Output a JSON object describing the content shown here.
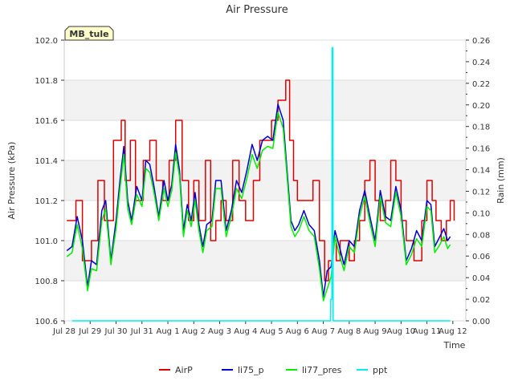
{
  "chart_data": {
    "type": "line",
    "title": "Air Pressure",
    "xlabel": "Time",
    "ylabel_left": "Air Pressure (kPa)",
    "ylabel_right": "Rain (mm)",
    "badge": "MB_tule",
    "ylim_left": [
      100.6,
      102.0
    ],
    "ylim_right": [
      0.0,
      0.26
    ],
    "xlim": [
      0,
      15.5
    ],
    "yticks_left": [
      "100.6",
      "100.8",
      "101.0",
      "101.2",
      "101.4",
      "101.6",
      "101.8",
      "102.0"
    ],
    "yticks_right": [
      "0.00",
      "0.02",
      "0.04",
      "0.06",
      "0.08",
      "0.10",
      "0.12",
      "0.14",
      "0.16",
      "0.18",
      "0.20",
      "0.22",
      "0.24",
      "0.26"
    ],
    "xticks": [
      "Jul 28",
      "Jul 29",
      "Jul 30",
      "Jul 31",
      "Aug 1",
      "Aug 2",
      "Aug 3",
      "Aug 4",
      "Aug 5",
      "Aug 6",
      "Aug 7",
      "Aug 8",
      "Aug 9",
      "Aug 10",
      "Aug 11",
      "Aug 12"
    ],
    "series": [
      {
        "name": "AirP",
        "color": "#dd0000",
        "axis": "left",
        "step": true,
        "x": [
          0.1,
          0.45,
          0.7,
          1.05,
          1.3,
          1.55,
          1.9,
          2.2,
          2.35,
          2.55,
          2.75,
          3.05,
          3.3,
          3.55,
          3.8,
          4.05,
          4.3,
          4.55,
          4.8,
          5.0,
          5.2,
          5.45,
          5.65,
          5.85,
          6.05,
          6.25,
          6.5,
          6.75,
          7.0,
          7.3,
          7.55,
          7.75,
          8.0,
          8.25,
          8.55,
          8.7,
          8.85,
          9.0,
          9.15,
          9.35,
          9.6,
          9.85,
          10.05,
          10.2,
          10.35,
          10.5,
          10.65,
          10.8,
          11.0,
          11.2,
          11.4,
          11.6,
          11.8,
          12.0,
          12.2,
          12.4,
          12.6,
          12.8,
          13.0,
          13.2,
          13.5,
          13.8,
          14.0,
          14.2,
          14.35,
          14.55,
          14.75,
          14.9,
          15.05
        ],
        "values": [
          101.1,
          101.2,
          100.9,
          101.0,
          101.3,
          101.1,
          101.5,
          101.6,
          101.3,
          101.5,
          101.2,
          101.4,
          101.5,
          101.3,
          101.2,
          101.4,
          101.6,
          101.3,
          101.1,
          101.3,
          101.1,
          101.4,
          101.0,
          101.1,
          101.2,
          101.1,
          101.4,
          101.2,
          101.1,
          101.3,
          101.5,
          101.5,
          101.6,
          101.7,
          101.8,
          101.5,
          101.3,
          101.2,
          101.2,
          101.2,
          101.3,
          101.0,
          100.8,
          100.9,
          101.0,
          100.9,
          101.0,
          101.0,
          100.9,
          101.0,
          101.1,
          101.3,
          101.4,
          101.2,
          101.1,
          101.2,
          101.4,
          101.3,
          101.1,
          101.0,
          100.9,
          101.1,
          101.3,
          101.2,
          101.1,
          101.0,
          101.1,
          101.2,
          101.1
        ]
      },
      {
        "name": "li75_p",
        "color": "#0000cc",
        "axis": "left",
        "step": false,
        "x": [
          0.1,
          0.3,
          0.5,
          0.7,
          0.9,
          1.05,
          1.25,
          1.45,
          1.6,
          1.8,
          2.0,
          2.15,
          2.3,
          2.45,
          2.6,
          2.8,
          3.0,
          3.15,
          3.3,
          3.45,
          3.65,
          3.85,
          4.0,
          4.15,
          4.3,
          4.45,
          4.6,
          4.75,
          4.9,
          5.05,
          5.2,
          5.35,
          5.5,
          5.7,
          5.85,
          6.05,
          6.25,
          6.45,
          6.65,
          6.85,
          7.05,
          7.25,
          7.45,
          7.65,
          7.85,
          8.05,
          8.25,
          8.45,
          8.6,
          8.75,
          8.9,
          9.05,
          9.25,
          9.45,
          9.65,
          9.85,
          10.0,
          10.15,
          10.3,
          10.45,
          10.6,
          10.8,
          11.0,
          11.2,
          11.4,
          11.6,
          11.8,
          12.0,
          12.2,
          12.4,
          12.6,
          12.8,
          13.0,
          13.2,
          13.4,
          13.6,
          13.8,
          14.0,
          14.15,
          14.3,
          14.5,
          14.65,
          14.8,
          14.9
        ],
        "values": [
          100.95,
          100.97,
          101.12,
          101.0,
          100.77,
          100.9,
          100.88,
          101.15,
          101.2,
          100.9,
          101.1,
          101.3,
          101.47,
          101.2,
          101.1,
          101.27,
          101.2,
          101.4,
          101.38,
          101.28,
          101.12,
          101.3,
          101.2,
          101.28,
          101.48,
          101.35,
          101.05,
          101.18,
          101.1,
          101.24,
          101.08,
          100.97,
          101.08,
          101.1,
          101.3,
          101.3,
          101.05,
          101.15,
          101.3,
          101.24,
          101.35,
          101.48,
          101.4,
          101.5,
          101.52,
          101.5,
          101.68,
          101.6,
          101.35,
          101.1,
          101.05,
          101.08,
          101.15,
          101.08,
          101.05,
          100.9,
          100.72,
          100.85,
          100.87,
          101.05,
          100.98,
          100.88,
          101.0,
          100.97,
          101.15,
          101.25,
          101.12,
          101.0,
          101.25,
          101.12,
          101.1,
          101.27,
          101.15,
          100.9,
          100.96,
          101.05,
          101.0,
          101.2,
          101.18,
          100.97,
          101.02,
          101.06,
          101.0,
          101.02
        ]
      },
      {
        "name": "li77_pres",
        "color": "#00ee00",
        "axis": "left",
        "step": false,
        "x": [
          0.1,
          0.3,
          0.5,
          0.7,
          0.9,
          1.05,
          1.25,
          1.45,
          1.6,
          1.8,
          2.0,
          2.15,
          2.3,
          2.45,
          2.6,
          2.8,
          3.0,
          3.15,
          3.3,
          3.45,
          3.65,
          3.85,
          4.0,
          4.15,
          4.3,
          4.45,
          4.6,
          4.75,
          4.9,
          5.05,
          5.2,
          5.35,
          5.5,
          5.7,
          5.85,
          6.05,
          6.25,
          6.45,
          6.65,
          6.85,
          7.05,
          7.25,
          7.45,
          7.65,
          7.85,
          8.05,
          8.25,
          8.45,
          8.6,
          8.75,
          8.9,
          9.05,
          9.25,
          9.45,
          9.65,
          9.85,
          10.0,
          10.15,
          10.3,
          10.45,
          10.6,
          10.8,
          11.0,
          11.2,
          11.4,
          11.6,
          11.8,
          12.0,
          12.2,
          12.4,
          12.6,
          12.8,
          13.0,
          13.2,
          13.4,
          13.6,
          13.8,
          14.0,
          14.15,
          14.3,
          14.5,
          14.65,
          14.8,
          14.9
        ],
        "values": [
          100.92,
          100.94,
          101.08,
          100.96,
          100.75,
          100.86,
          100.85,
          101.1,
          101.16,
          100.88,
          101.06,
          101.26,
          101.43,
          101.16,
          101.08,
          101.23,
          101.17,
          101.36,
          101.34,
          101.25,
          101.1,
          101.26,
          101.17,
          101.25,
          101.44,
          101.32,
          101.02,
          101.15,
          101.07,
          101.2,
          101.05,
          100.94,
          101.05,
          101.07,
          101.26,
          101.26,
          101.02,
          101.12,
          101.26,
          101.21,
          101.31,
          101.43,
          101.36,
          101.45,
          101.47,
          101.46,
          101.64,
          101.56,
          101.32,
          101.07,
          101.02,
          101.05,
          101.12,
          101.05,
          101.02,
          100.86,
          100.7,
          100.76,
          100.82,
          101.02,
          100.94,
          100.85,
          100.97,
          100.94,
          101.12,
          101.22,
          101.09,
          100.97,
          101.22,
          101.09,
          101.07,
          101.24,
          101.12,
          100.88,
          100.93,
          101.01,
          100.97,
          101.17,
          101.15,
          100.94,
          100.98,
          101.02,
          100.96,
          100.98
        ]
      },
      {
        "name": "ppt",
        "color": "#00eeee",
        "axis": "right",
        "step": false,
        "x": [
          0.3,
          10.28,
          10.29,
          10.33,
          10.34,
          10.37,
          10.38,
          14.9
        ],
        "values": [
          0.0,
          0.0,
          0.02,
          0.02,
          0.253,
          0.253,
          0.0,
          0.0
        ]
      }
    ]
  }
}
